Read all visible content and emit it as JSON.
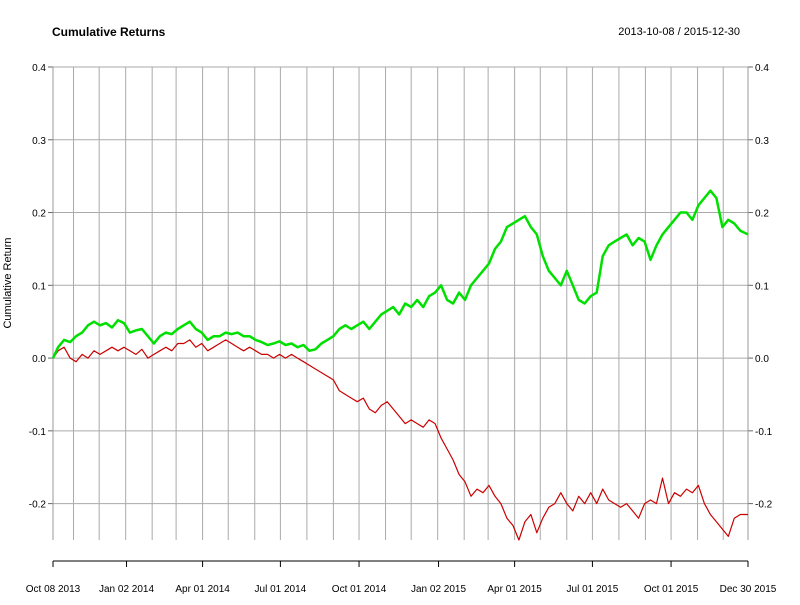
{
  "chart_data": {
    "type": "line",
    "title": "Cumulative Returns",
    "date_range": "2013-10-08 / 2015-12-30",
    "ylabel": "Cumulative Return",
    "xlabel": "",
    "ylim": [
      -0.25,
      0.4
    ],
    "yticks": [
      0.4,
      0.3,
      0.2,
      0.1,
      0.0,
      -0.1,
      -0.2
    ],
    "ytick_labels": [
      "0.4",
      "0.3",
      "0.2",
      "0.1",
      "0.0",
      "-0.1",
      "-0.2"
    ],
    "xlim": [
      "2013-10-08",
      "2015-12-30"
    ],
    "x_ticks": [
      {
        "date": "2013-10-08",
        "label": "Oct 08 2013"
      },
      {
        "date": "2014-01-02",
        "label": "Jan 02 2014"
      },
      {
        "date": "2014-04-01",
        "label": "Apr 01 2014"
      },
      {
        "date": "2014-07-01",
        "label": "Jul 01 2014"
      },
      {
        "date": "2014-10-01",
        "label": "Oct 01 2014"
      },
      {
        "date": "2015-01-02",
        "label": "Jan 02 2015"
      },
      {
        "date": "2015-04-01",
        "label": "Apr 01 2015"
      },
      {
        "date": "2015-07-01",
        "label": "Jul 01 2015"
      },
      {
        "date": "2015-10-01",
        "label": "Oct 01 2015"
      },
      {
        "date": "2015-12-30",
        "label": "Dec 30 2015"
      }
    ],
    "grid": true,
    "series": [
      {
        "color": "#00e000",
        "points": [
          [
            "2013-10-08",
            0.0
          ],
          [
            "2013-10-14",
            0.015
          ],
          [
            "2013-10-21",
            0.025
          ],
          [
            "2013-10-28",
            0.022
          ],
          [
            "2013-11-04",
            0.03
          ],
          [
            "2013-11-11",
            0.035
          ],
          [
            "2013-11-18",
            0.045
          ],
          [
            "2013-11-25",
            0.05
          ],
          [
            "2013-12-02",
            0.045
          ],
          [
            "2013-12-09",
            0.048
          ],
          [
            "2013-12-16",
            0.042
          ],
          [
            "2013-12-23",
            0.052
          ],
          [
            "2013-12-30",
            0.048
          ],
          [
            "2014-01-06",
            0.035
          ],
          [
            "2014-01-13",
            0.038
          ],
          [
            "2014-01-20",
            0.04
          ],
          [
            "2014-01-27",
            0.03
          ],
          [
            "2014-02-03",
            0.02
          ],
          [
            "2014-02-10",
            0.03
          ],
          [
            "2014-02-17",
            0.035
          ],
          [
            "2014-02-24",
            0.033
          ],
          [
            "2014-03-03",
            0.04
          ],
          [
            "2014-03-10",
            0.045
          ],
          [
            "2014-03-17",
            0.05
          ],
          [
            "2014-03-24",
            0.04
          ],
          [
            "2014-03-31",
            0.035
          ],
          [
            "2014-04-07",
            0.025
          ],
          [
            "2014-04-14",
            0.03
          ],
          [
            "2014-04-21",
            0.03
          ],
          [
            "2014-04-28",
            0.035
          ],
          [
            "2014-05-05",
            0.033
          ],
          [
            "2014-05-12",
            0.035
          ],
          [
            "2014-05-19",
            0.03
          ],
          [
            "2014-05-26",
            0.03
          ],
          [
            "2014-06-02",
            0.025
          ],
          [
            "2014-06-09",
            0.022
          ],
          [
            "2014-06-16",
            0.018
          ],
          [
            "2014-06-23",
            0.02
          ],
          [
            "2014-06-30",
            0.023
          ],
          [
            "2014-07-07",
            0.018
          ],
          [
            "2014-07-14",
            0.02
          ],
          [
            "2014-07-21",
            0.015
          ],
          [
            "2014-07-28",
            0.018
          ],
          [
            "2014-08-04",
            0.01
          ],
          [
            "2014-08-11",
            0.012
          ],
          [
            "2014-08-18",
            0.02
          ],
          [
            "2014-08-25",
            0.025
          ],
          [
            "2014-09-01",
            0.03
          ],
          [
            "2014-09-08",
            0.04
          ],
          [
            "2014-09-15",
            0.045
          ],
          [
            "2014-09-22",
            0.04
          ],
          [
            "2014-09-29",
            0.045
          ],
          [
            "2014-10-06",
            0.05
          ],
          [
            "2014-10-13",
            0.04
          ],
          [
            "2014-10-20",
            0.05
          ],
          [
            "2014-10-27",
            0.06
          ],
          [
            "2014-11-03",
            0.065
          ],
          [
            "2014-11-10",
            0.07
          ],
          [
            "2014-11-17",
            0.06
          ],
          [
            "2014-11-24",
            0.075
          ],
          [
            "2014-12-01",
            0.07
          ],
          [
            "2014-12-08",
            0.08
          ],
          [
            "2014-12-15",
            0.07
          ],
          [
            "2014-12-22",
            0.085
          ],
          [
            "2014-12-29",
            0.09
          ],
          [
            "2015-01-05",
            0.1
          ],
          [
            "2015-01-12",
            0.08
          ],
          [
            "2015-01-19",
            0.075
          ],
          [
            "2015-01-26",
            0.09
          ],
          [
            "2015-02-02",
            0.08
          ],
          [
            "2015-02-09",
            0.1
          ],
          [
            "2015-02-16",
            0.11
          ],
          [
            "2015-02-23",
            0.12
          ],
          [
            "2015-03-02",
            0.13
          ],
          [
            "2015-03-09",
            0.15
          ],
          [
            "2015-03-16",
            0.16
          ],
          [
            "2015-03-23",
            0.18
          ],
          [
            "2015-03-30",
            0.185
          ],
          [
            "2015-04-06",
            0.19
          ],
          [
            "2015-04-13",
            0.195
          ],
          [
            "2015-04-20",
            0.18
          ],
          [
            "2015-04-27",
            0.17
          ],
          [
            "2015-05-04",
            0.14
          ],
          [
            "2015-05-11",
            0.12
          ],
          [
            "2015-05-18",
            0.11
          ],
          [
            "2015-05-25",
            0.1
          ],
          [
            "2015-06-01",
            0.12
          ],
          [
            "2015-06-08",
            0.1
          ],
          [
            "2015-06-15",
            0.08
          ],
          [
            "2015-06-22",
            0.075
          ],
          [
            "2015-06-29",
            0.085
          ],
          [
            "2015-07-06",
            0.09
          ],
          [
            "2015-07-13",
            0.14
          ],
          [
            "2015-07-20",
            0.155
          ],
          [
            "2015-07-27",
            0.16
          ],
          [
            "2015-08-03",
            0.165
          ],
          [
            "2015-08-10",
            0.17
          ],
          [
            "2015-08-17",
            0.155
          ],
          [
            "2015-08-24",
            0.165
          ],
          [
            "2015-08-31",
            0.16
          ],
          [
            "2015-09-07",
            0.135
          ],
          [
            "2015-09-14",
            0.155
          ],
          [
            "2015-09-21",
            0.17
          ],
          [
            "2015-09-28",
            0.18
          ],
          [
            "2015-10-05",
            0.19
          ],
          [
            "2015-10-12",
            0.2
          ],
          [
            "2015-10-19",
            0.2
          ],
          [
            "2015-10-26",
            0.19
          ],
          [
            "2015-11-02",
            0.21
          ],
          [
            "2015-11-09",
            0.22
          ],
          [
            "2015-11-16",
            0.23
          ],
          [
            "2015-11-23",
            0.22
          ],
          [
            "2015-11-30",
            0.18
          ],
          [
            "2015-12-07",
            0.19
          ],
          [
            "2015-12-14",
            0.185
          ],
          [
            "2015-12-21",
            0.175
          ],
          [
            "2015-12-30",
            0.17
          ]
        ]
      },
      {
        "color": "#cc0000",
        "points": [
          [
            "2013-10-08",
            0.0
          ],
          [
            "2013-10-14",
            0.01
          ],
          [
            "2013-10-21",
            0.015
          ],
          [
            "2013-10-28",
            0.0
          ],
          [
            "2013-11-04",
            -0.005
          ],
          [
            "2013-11-11",
            0.005
          ],
          [
            "2013-11-18",
            0.0
          ],
          [
            "2013-11-25",
            0.01
          ],
          [
            "2013-12-02",
            0.005
          ],
          [
            "2013-12-09",
            0.01
          ],
          [
            "2013-12-16",
            0.015
          ],
          [
            "2013-12-23",
            0.01
          ],
          [
            "2013-12-30",
            0.015
          ],
          [
            "2014-01-06",
            0.01
          ],
          [
            "2014-01-13",
            0.005
          ],
          [
            "2014-01-20",
            0.012
          ],
          [
            "2014-01-27",
            0.0
          ],
          [
            "2014-02-03",
            0.005
          ],
          [
            "2014-02-10",
            0.01
          ],
          [
            "2014-02-17",
            0.015
          ],
          [
            "2014-02-24",
            0.01
          ],
          [
            "2014-03-03",
            0.02
          ],
          [
            "2014-03-10",
            0.02
          ],
          [
            "2014-03-17",
            0.025
          ],
          [
            "2014-03-24",
            0.015
          ],
          [
            "2014-03-31",
            0.02
          ],
          [
            "2014-04-07",
            0.01
          ],
          [
            "2014-04-14",
            0.015
          ],
          [
            "2014-04-21",
            0.02
          ],
          [
            "2014-04-28",
            0.025
          ],
          [
            "2014-05-05",
            0.02
          ],
          [
            "2014-05-12",
            0.015
          ],
          [
            "2014-05-19",
            0.01
          ],
          [
            "2014-05-26",
            0.015
          ],
          [
            "2014-06-02",
            0.01
          ],
          [
            "2014-06-09",
            0.005
          ],
          [
            "2014-06-16",
            0.005
          ],
          [
            "2014-06-23",
            0.0
          ],
          [
            "2014-06-30",
            0.005
          ],
          [
            "2014-07-07",
            0.0
          ],
          [
            "2014-07-14",
            0.005
          ],
          [
            "2014-07-21",
            0.0
          ],
          [
            "2014-07-28",
            -0.005
          ],
          [
            "2014-08-04",
            -0.01
          ],
          [
            "2014-08-11",
            -0.015
          ],
          [
            "2014-08-18",
            -0.02
          ],
          [
            "2014-08-25",
            -0.025
          ],
          [
            "2014-09-01",
            -0.03
          ],
          [
            "2014-09-08",
            -0.045
          ],
          [
            "2014-09-15",
            -0.05
          ],
          [
            "2014-09-22",
            -0.055
          ],
          [
            "2014-09-29",
            -0.06
          ],
          [
            "2014-10-06",
            -0.055
          ],
          [
            "2014-10-13",
            -0.07
          ],
          [
            "2014-10-20",
            -0.075
          ],
          [
            "2014-10-27",
            -0.065
          ],
          [
            "2014-11-03",
            -0.06
          ],
          [
            "2014-11-10",
            -0.07
          ],
          [
            "2014-11-17",
            -0.08
          ],
          [
            "2014-11-24",
            -0.09
          ],
          [
            "2014-12-01",
            -0.085
          ],
          [
            "2014-12-08",
            -0.09
          ],
          [
            "2014-12-15",
            -0.095
          ],
          [
            "2014-12-22",
            -0.085
          ],
          [
            "2014-12-29",
            -0.09
          ],
          [
            "2015-01-05",
            -0.11
          ],
          [
            "2015-01-12",
            -0.125
          ],
          [
            "2015-01-19",
            -0.14
          ],
          [
            "2015-01-26",
            -0.16
          ],
          [
            "2015-02-02",
            -0.17
          ],
          [
            "2015-02-09",
            -0.19
          ],
          [
            "2015-02-16",
            -0.18
          ],
          [
            "2015-02-23",
            -0.185
          ],
          [
            "2015-03-02",
            -0.175
          ],
          [
            "2015-03-09",
            -0.19
          ],
          [
            "2015-03-16",
            -0.2
          ],
          [
            "2015-03-23",
            -0.22
          ],
          [
            "2015-03-30",
            -0.23
          ],
          [
            "2015-04-06",
            -0.25
          ],
          [
            "2015-04-13",
            -0.225
          ],
          [
            "2015-04-20",
            -0.215
          ],
          [
            "2015-04-27",
            -0.24
          ],
          [
            "2015-05-04",
            -0.22
          ],
          [
            "2015-05-11",
            -0.205
          ],
          [
            "2015-05-18",
            -0.2
          ],
          [
            "2015-05-25",
            -0.185
          ],
          [
            "2015-06-01",
            -0.2
          ],
          [
            "2015-06-08",
            -0.21
          ],
          [
            "2015-06-15",
            -0.19
          ],
          [
            "2015-06-22",
            -0.2
          ],
          [
            "2015-06-29",
            -0.185
          ],
          [
            "2015-07-06",
            -0.2
          ],
          [
            "2015-07-13",
            -0.18
          ],
          [
            "2015-07-20",
            -0.195
          ],
          [
            "2015-07-27",
            -0.2
          ],
          [
            "2015-08-03",
            -0.205
          ],
          [
            "2015-08-10",
            -0.2
          ],
          [
            "2015-08-17",
            -0.21
          ],
          [
            "2015-08-24",
            -0.22
          ],
          [
            "2015-08-31",
            -0.2
          ],
          [
            "2015-09-07",
            -0.195
          ],
          [
            "2015-09-14",
            -0.2
          ],
          [
            "2015-09-21",
            -0.165
          ],
          [
            "2015-09-28",
            -0.2
          ],
          [
            "2015-10-05",
            -0.185
          ],
          [
            "2015-10-12",
            -0.19
          ],
          [
            "2015-10-19",
            -0.18
          ],
          [
            "2015-10-26",
            -0.185
          ],
          [
            "2015-11-02",
            -0.175
          ],
          [
            "2015-11-09",
            -0.2
          ],
          [
            "2015-11-16",
            -0.215
          ],
          [
            "2015-11-23",
            -0.225
          ],
          [
            "2015-11-30",
            -0.235
          ],
          [
            "2015-12-07",
            -0.245
          ],
          [
            "2015-12-14",
            -0.22
          ],
          [
            "2015-12-21",
            -0.215
          ],
          [
            "2015-12-30",
            -0.215
          ]
        ]
      }
    ]
  }
}
